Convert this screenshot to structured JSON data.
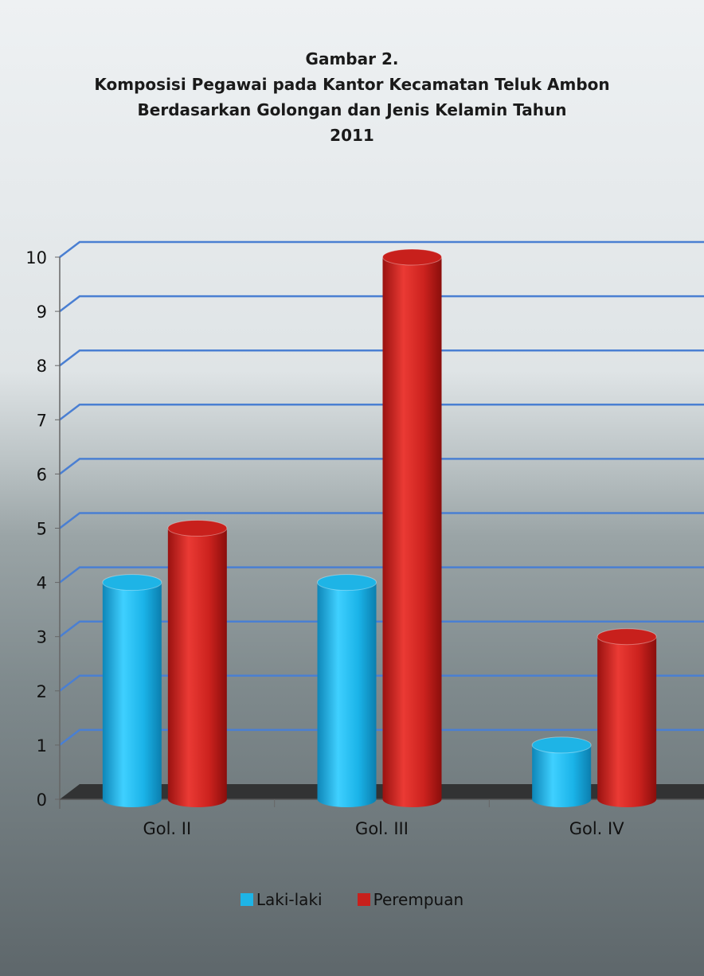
{
  "colors": {
    "laki": "#1eb4e6",
    "perempuan": "#c8201c"
  },
  "chart_data": {
    "type": "bar",
    "title_lines": [
      "Gambar 2.",
      "Komposisi Pegawai pada Kantor Kecamatan Teluk Ambon",
      "Berdasarkan Golongan dan Jenis Kelamin Tahun",
      "2011"
    ],
    "categories": [
      "Gol. II",
      "Gol. III",
      "Gol. IV"
    ],
    "series": [
      {
        "name": "Laki-laki",
        "values": [
          4,
          4,
          1
        ]
      },
      {
        "name": "Perempuan",
        "values": [
          5,
          10,
          3
        ]
      }
    ],
    "yticks": [
      "0",
      "1",
      "2",
      "3",
      "4",
      "5",
      "6",
      "7",
      "8",
      "9",
      "10"
    ],
    "ylim": [
      0,
      10
    ],
    "grid": true,
    "legend_position": "bottom"
  }
}
